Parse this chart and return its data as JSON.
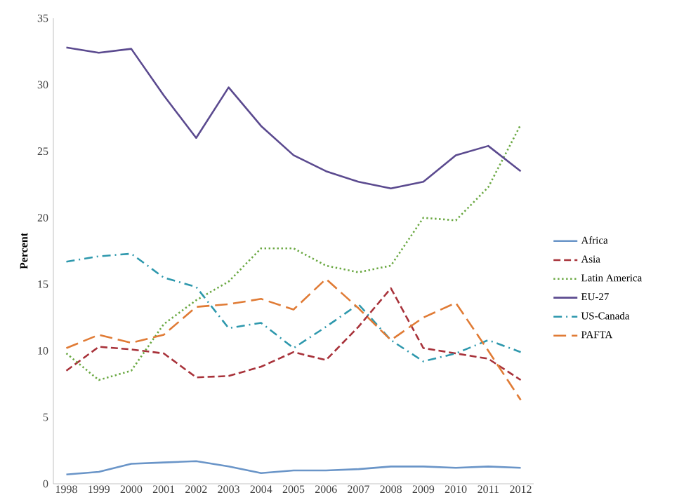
{
  "chart_data": {
    "type": "line",
    "ylabel": "Percent",
    "categories": [
      "1998",
      "1999",
      "2000",
      "2001",
      "2002",
      "2003",
      "2004",
      "2005",
      "2006",
      "2007",
      "2008",
      "2009",
      "2010",
      "2011",
      "2012"
    ],
    "ylim": [
      0,
      35
    ],
    "yticks": [
      0,
      5,
      10,
      15,
      20,
      25,
      30,
      35
    ],
    "legend": "right",
    "grid": false,
    "marker": "none",
    "series": [
      {
        "name": "Africa",
        "color": "#6a95c8",
        "line_style": "solid",
        "values": [
          0.7,
          0.9,
          1.5,
          1.6,
          1.7,
          1.3,
          0.8,
          1.0,
          1.0,
          1.1,
          1.3,
          1.3,
          1.2,
          1.3,
          1.2
        ]
      },
      {
        "name": "Asia",
        "color": "#a8323a",
        "line_style": "dashed",
        "values": [
          8.5,
          10.3,
          10.1,
          9.8,
          8.0,
          8.1,
          8.8,
          9.9,
          9.3,
          11.8,
          14.7,
          10.2,
          9.8,
          9.4,
          7.8
        ]
      },
      {
        "name": "Latin America",
        "color": "#6aa842",
        "line_style": "dotted",
        "values": [
          9.8,
          7.8,
          8.5,
          12.0,
          13.8,
          15.2,
          17.7,
          17.7,
          16.4,
          15.9,
          16.4,
          20.0,
          19.8,
          22.3,
          27.0
        ]
      },
      {
        "name": "EU-27",
        "color": "#5b4a8f",
        "line_style": "solid",
        "values": [
          32.8,
          32.4,
          32.7,
          29.2,
          26.0,
          29.8,
          26.9,
          24.7,
          23.5,
          22.7,
          22.2,
          22.7,
          24.7,
          25.4,
          23.5
        ]
      },
      {
        "name": "US-Canada",
        "color": "#2e98ad",
        "line_style": "dashdot",
        "values": [
          16.7,
          17.1,
          17.3,
          15.5,
          14.8,
          11.7,
          12.1,
          10.2,
          11.8,
          13.5,
          10.8,
          9.2,
          9.8,
          10.8,
          9.9
        ]
      },
      {
        "name": "PAFTA",
        "color": "#e07b35",
        "line_style": "longdash",
        "values": [
          10.2,
          11.2,
          10.6,
          11.2,
          13.3,
          13.5,
          13.9,
          13.1,
          15.4,
          13.2,
          10.8,
          12.5,
          13.6,
          10.0,
          6.3
        ]
      }
    ]
  }
}
